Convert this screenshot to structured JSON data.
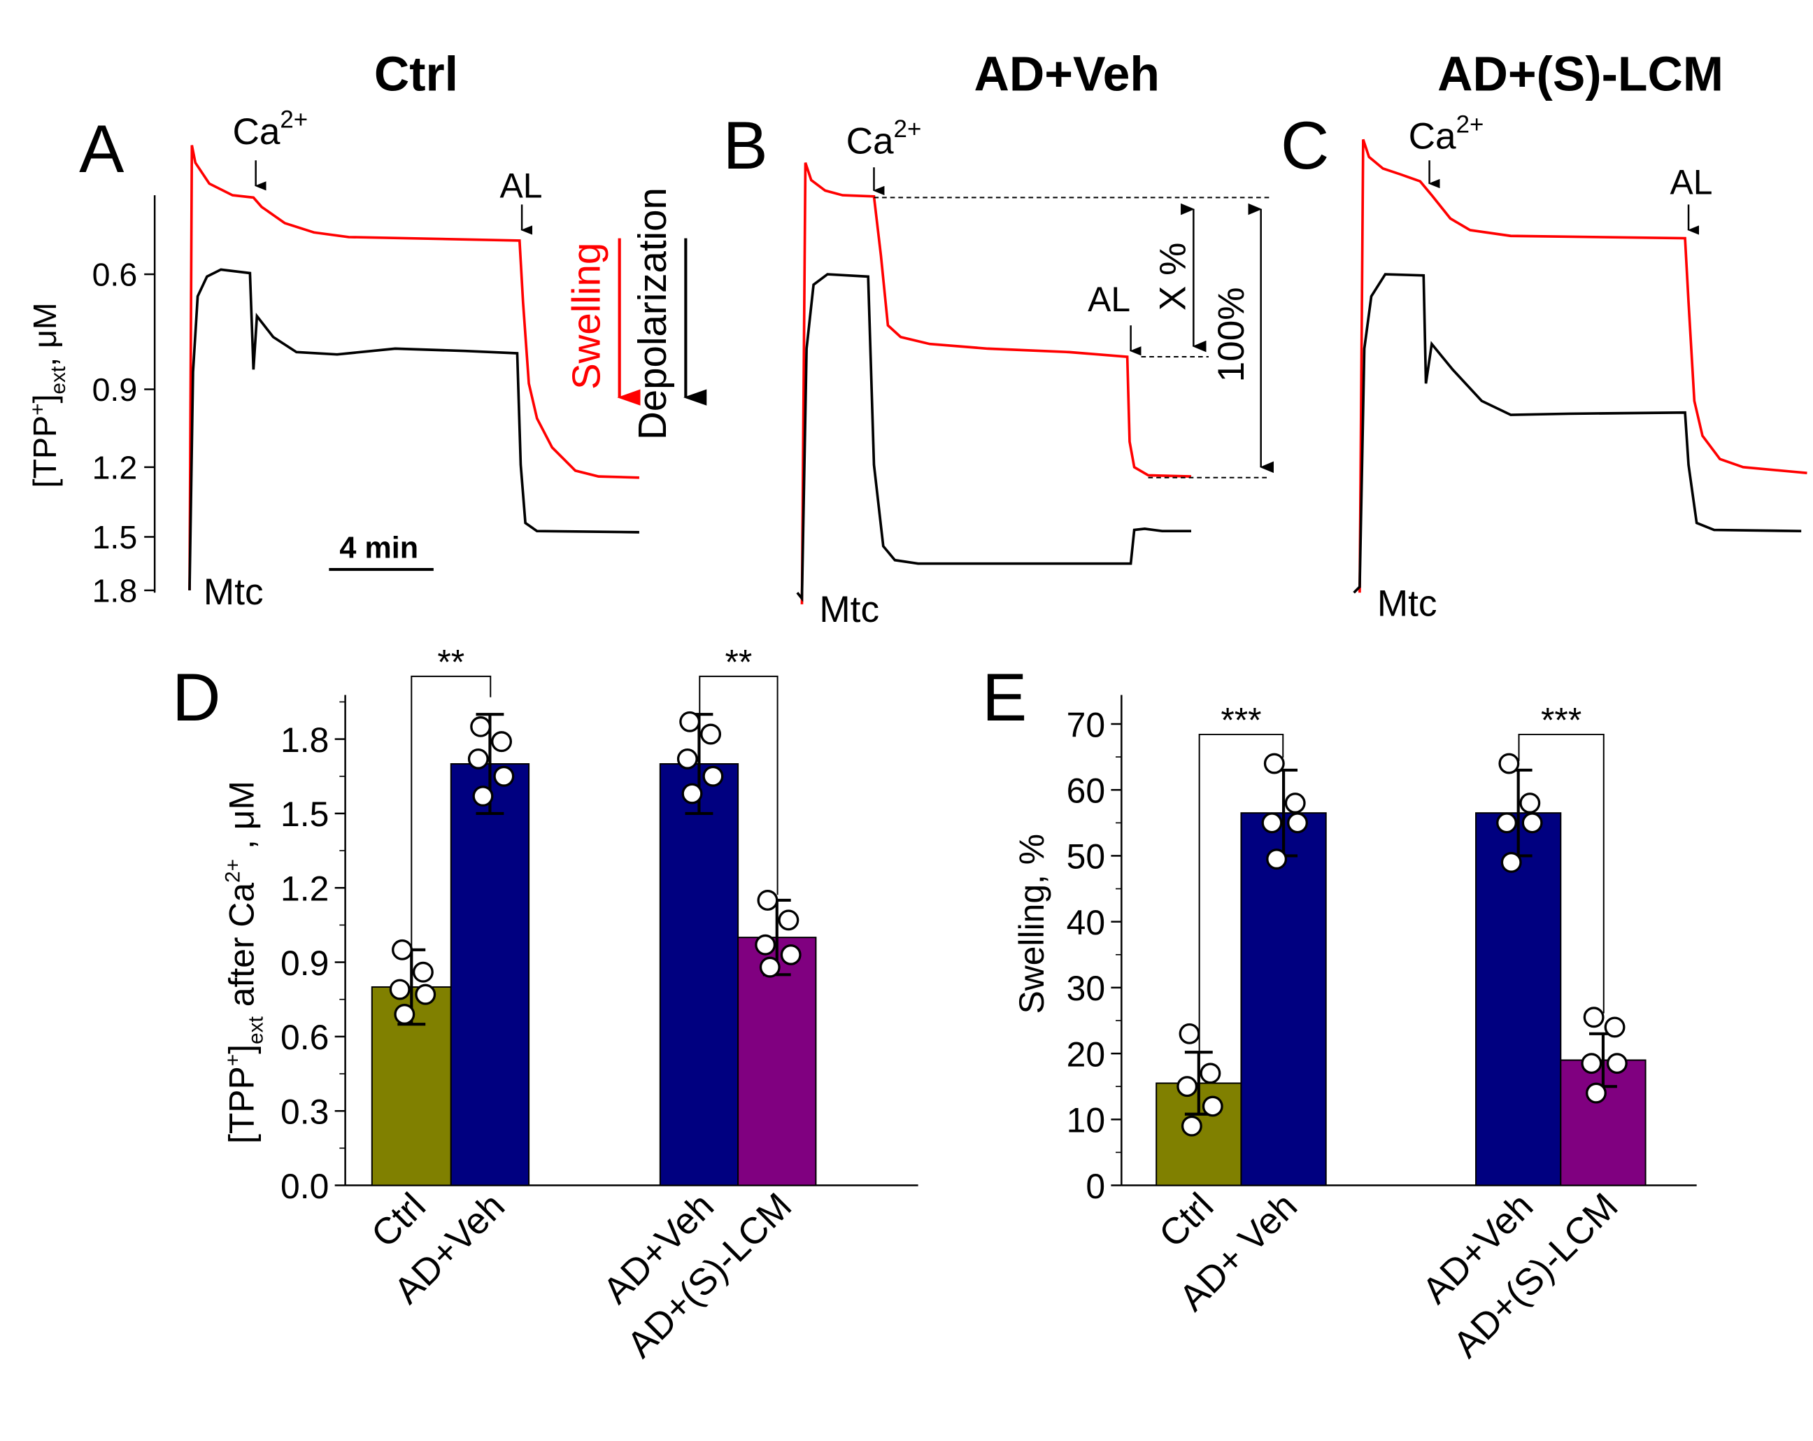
{
  "titles": {
    "ctrl": "Ctrl",
    "adveh": "AD+Veh",
    "adlcm": "AD+(S)-LCM"
  },
  "panel_letters": {
    "a": "A",
    "b": "B",
    "c": "C",
    "d": "D",
    "e": "E"
  },
  "colors": {
    "ctrl": "#808000",
    "veh": "#000080",
    "lcm": "#800080",
    "swelling": "#ff0000",
    "depolarization": "#000000"
  },
  "traces": {
    "ylabel_main": "[TPP",
    "ylabel_sup": "+",
    "ylabel_sub": "ext",
    "ylabel_unit": ", μM",
    "yticks": [
      "0.6",
      "0.9",
      "1.2",
      "1.5",
      "1.8"
    ],
    "ca_label": "Ca",
    "ca_sup": "2+",
    "al_label": "AL",
    "mtc_label": "Mtc",
    "swelling_label": "Swelling",
    "depolarization_label": "Depolarization",
    "scale_label": "4 min",
    "x_label": "X %",
    "full_label": "100%"
  },
  "chart_data": [
    {
      "type": "bar",
      "panel": "D",
      "ylabel": "[TPP+]ext after Ca2+, μM",
      "ylabel_parts": {
        "main": "[TPP",
        "sup": "+",
        "sub": "ext",
        "mid": " after Ca",
        "sup2": "2+",
        "unit": " , μM"
      },
      "ylim": [
        0,
        1.95
      ],
      "yticks": [
        "0.0",
        "0.3",
        "0.6",
        "0.9",
        "1.2",
        "1.5",
        "1.8"
      ],
      "categories": [
        "Ctrl",
        "AD+Veh",
        "AD+Veh",
        "AD+(S)-LCM"
      ],
      "values": [
        0.8,
        1.7,
        1.7,
        1.0
      ],
      "errors": [
        0.15,
        0.2,
        0.2,
        0.15
      ],
      "points": [
        [
          0.95,
          0.86,
          0.79,
          0.77,
          0.69
        ],
        [
          1.85,
          1.79,
          1.72,
          1.65,
          1.57
        ],
        [
          1.87,
          1.82,
          1.72,
          1.65,
          1.58
        ],
        [
          1.15,
          1.07,
          0.97,
          0.93,
          0.88
        ]
      ],
      "significance": [
        "**",
        "**"
      ]
    },
    {
      "type": "bar",
      "panel": "E",
      "ylabel": "Swelling, %",
      "ylim": [
        0,
        74
      ],
      "yticks": [
        "0",
        "10",
        "20",
        "30",
        "40",
        "50",
        "60",
        "70"
      ],
      "categories": [
        "Ctrl",
        "AD+ Veh",
        "AD+Veh",
        "AD+(S)-LCM"
      ],
      "values": [
        15.5,
        56.5,
        56.5,
        19
      ],
      "errors": [
        4.7,
        6.5,
        6.5,
        4
      ],
      "points": [
        [
          23,
          17,
          15,
          12,
          9
        ],
        [
          64,
          58,
          55,
          55,
          49.5
        ],
        [
          64,
          58,
          55,
          55,
          49
        ],
        [
          25.5,
          24,
          18.5,
          18.5,
          14
        ]
      ],
      "significance": [
        "***",
        "***"
      ]
    }
  ]
}
